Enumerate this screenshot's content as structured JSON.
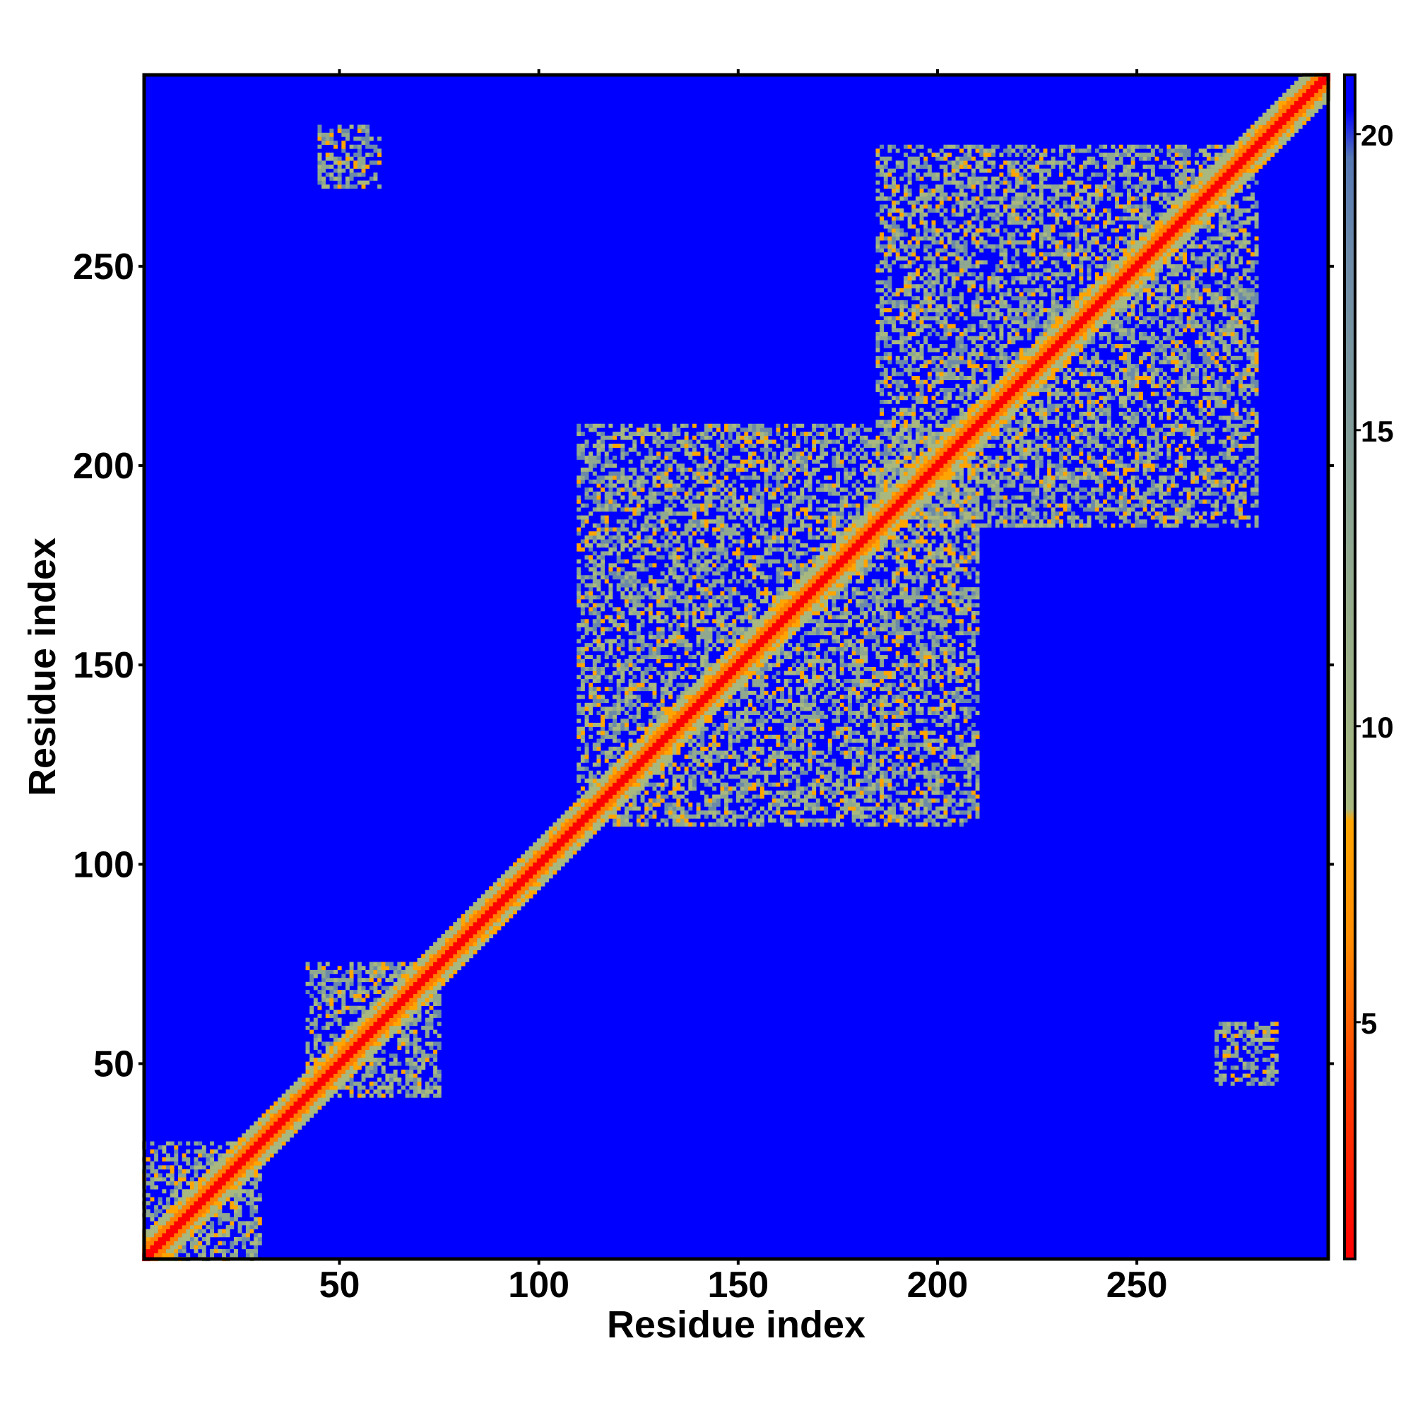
{
  "chart_data": {
    "type": "heatmap",
    "title": "",
    "xlabel": "Residue index",
    "ylabel": "Residue index",
    "xlim": [
      1,
      298
    ],
    "ylim": [
      1,
      298
    ],
    "x_ticks": [
      50,
      100,
      150,
      200,
      250
    ],
    "y_ticks": [
      50,
      100,
      150,
      200,
      250
    ],
    "x_tick_labels": [
      "50",
      "100",
      "150",
      "200",
      "250"
    ],
    "y_tick_labels": [
      "50",
      "100",
      "150",
      "200",
      "250"
    ],
    "colorbar": {
      "range": [
        1,
        21
      ],
      "ticks": [
        5,
        10,
        15,
        20
      ],
      "tick_labels": [
        "5",
        "10",
        "15",
        "20"
      ],
      "colors": [
        "#ff0000",
        "#ff4000",
        "#ff7f00",
        "#ffa500",
        "#a8b87e",
        "#8fa88f",
        "#6c8aa8",
        "#0000ff"
      ]
    },
    "value_description": "pairwise residue distance matrix (symmetric), saturated at 21",
    "contact_regions": [
      {
        "x_range": [
          1,
          298
        ],
        "y_range": [
          1,
          298
        ],
        "kind": "diagonal"
      },
      {
        "x_range": [
          110,
          210
        ],
        "y_range": [
          110,
          210
        ],
        "kind": "domain"
      },
      {
        "x_range": [
          185,
          280
        ],
        "y_range": [
          185,
          280
        ],
        "kind": "domain"
      },
      {
        "x_range": [
          42,
          75
        ],
        "y_range": [
          42,
          75
        ],
        "kind": "domain"
      },
      {
        "x_range": [
          1,
          30
        ],
        "y_range": [
          1,
          30
        ],
        "kind": "domain"
      },
      {
        "x_range": [
          45,
          60
        ],
        "y_range": [
          270,
          285
        ],
        "kind": "off-diagonal"
      },
      {
        "x_range": [
          270,
          285
        ],
        "y_range": [
          45,
          60
        ],
        "kind": "off-diagonal"
      }
    ]
  }
}
